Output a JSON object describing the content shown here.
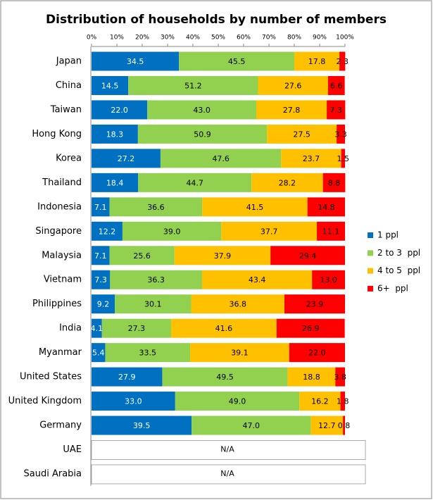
{
  "chart_data": {
    "type": "stacked-bar-horizontal",
    "title": "Distribution of households by number of members",
    "categories": [
      "Japan",
      "China",
      "Taiwan",
      "Hong Kong",
      "Korea",
      "Thailand",
      "Indonesia",
      "Singapore",
      "Malaysia",
      "Vietnam",
      "Philippines",
      "India",
      "Myanmar",
      "United States",
      "United Kingdom",
      "Germany",
      "UAE",
      "Saudi Arabia"
    ],
    "na_label": "N/A",
    "series": [
      {
        "name": "1 ppl",
        "color": "#0070c0",
        "label_color": "#ffffff",
        "values": [
          34.5,
          14.5,
          22.0,
          18.3,
          27.2,
          18.4,
          7.1,
          12.2,
          7.1,
          7.3,
          9.2,
          4.1,
          5.4,
          27.9,
          33.0,
          39.5,
          null,
          null
        ],
        "value_labels": [
          "34.5",
          "14.5",
          "22.0",
          "18.3",
          "27.2",
          "18.4",
          "7.1",
          "12.2",
          "7.1",
          "7.3",
          "9.2",
          "4.1",
          "5.4",
          "27.9",
          "33.0",
          "39.5",
          null,
          null
        ]
      },
      {
        "name": "2 to 3  ppl",
        "color": "#92d050",
        "label_color": "#000000",
        "values": [
          45.5,
          51.2,
          43.0,
          50.9,
          47.6,
          44.7,
          36.6,
          39.0,
          25.6,
          36.3,
          30.1,
          27.3,
          33.5,
          49.5,
          49.0,
          47.0,
          null,
          null
        ],
        "value_labels": [
          "45.5",
          "51.2",
          "43.0",
          "50.9",
          "47.6",
          "44.7",
          "36.6",
          "39.0",
          "25.6",
          "36.3",
          "30.1",
          "27.3",
          "33.5",
          "49.5",
          "49.0",
          "47.0",
          null,
          null
        ]
      },
      {
        "name": "4 to 5  ppl",
        "color": "#ffc000",
        "label_color": "#000000",
        "values": [
          17.8,
          27.6,
          27.8,
          27.5,
          23.7,
          28.2,
          41.5,
          37.7,
          37.9,
          43.4,
          36.8,
          41.6,
          39.1,
          18.8,
          16.2,
          12.7,
          null,
          null
        ],
        "value_labels": [
          "17.8",
          "27.6",
          "27.8",
          "27.5",
          "23.7",
          "28.2",
          "41.5",
          "37.7",
          "37.9",
          "43.4",
          "36.8",
          "41.6",
          "39.1",
          "18.8",
          "16.2",
          "12.7",
          null,
          null
        ]
      },
      {
        "name": "6+  ppl",
        "color": "#ff0000",
        "label_color": "#000000",
        "values": [
          2.3,
          6.6,
          7.3,
          3.3,
          1.5,
          8.8,
          14.8,
          11.1,
          29.4,
          13.0,
          23.9,
          26.9,
          22.0,
          3.8,
          1.8,
          0.8,
          null,
          null
        ],
        "value_labels": [
          "2.3",
          "6.6",
          "7.3",
          "3.3",
          "1.5",
          "8.8",
          "14.8",
          "11.1",
          "29.4",
          "13.0",
          "23.9",
          "26.9",
          "22.0",
          "3.8",
          "1.8",
          "0.8",
          null,
          null
        ]
      }
    ],
    "xlim": [
      0,
      100
    ],
    "xticks": [
      {
        "value": 0,
        "label": "0%"
      },
      {
        "value": 10,
        "label": "10%"
      },
      {
        "value": 20,
        "label": "20%"
      },
      {
        "value": 30,
        "label": "30%"
      },
      {
        "value": 40,
        "label": "40%"
      },
      {
        "value": 50,
        "label": "50%"
      },
      {
        "value": 60,
        "label": "60%"
      },
      {
        "value": 70,
        "label": "70%"
      },
      {
        "value": 80,
        "label": "80%"
      },
      {
        "value": 90,
        "label": "90%"
      },
      {
        "value": 100,
        "label": "100%"
      }
    ],
    "legend": "right"
  }
}
